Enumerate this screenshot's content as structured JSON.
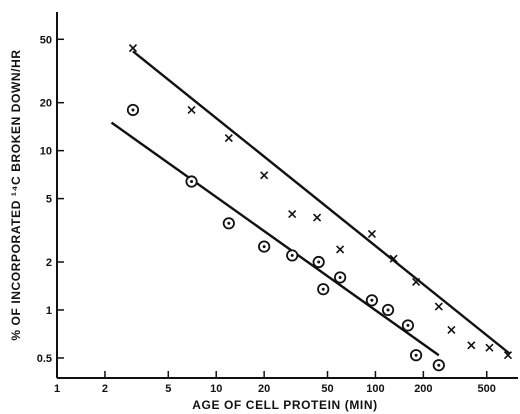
{
  "chart_data": {
    "type": "scatter",
    "title": "",
    "xlabel": "AGE OF CELL PROTEIN (MIN)",
    "ylabel": "% OF INCORPORATED ¹⁴C BROKEN DOWN/HR",
    "x_scale": "log",
    "y_scale": "log",
    "xlim": [
      1,
      700
    ],
    "ylim": [
      0.42,
      70
    ],
    "x_ticks": [
      1,
      2,
      5,
      10,
      20,
      50,
      100,
      200,
      500
    ],
    "y_ticks": [
      0.5,
      1,
      2,
      5,
      10,
      20,
      50
    ],
    "x_tick_labels": [
      "1",
      "2",
      "5",
      "10",
      "20",
      "50",
      "100",
      "200",
      "500"
    ],
    "y_tick_labels": [
      "0.5",
      "1",
      "2",
      "5",
      "10",
      "20",
      "50"
    ],
    "grid": false,
    "series": [
      {
        "marker": "x",
        "points": [
          [
            3,
            44
          ],
          [
            7,
            18
          ],
          [
            12,
            12
          ],
          [
            20,
            7
          ],
          [
            30,
            4
          ],
          [
            43,
            3.8
          ],
          [
            60,
            2.4
          ],
          [
            95,
            3.0
          ],
          [
            130,
            2.1
          ],
          [
            180,
            1.5
          ],
          [
            250,
            1.05
          ],
          [
            300,
            0.75
          ],
          [
            400,
            0.6
          ],
          [
            520,
            0.58
          ],
          [
            680,
            0.52
          ]
        ],
        "fit": [
          [
            3,
            42
          ],
          [
            700,
            0.53
          ]
        ]
      },
      {
        "marker": "circled-dot",
        "points": [
          [
            3,
            18
          ],
          [
            7,
            6.4
          ],
          [
            12,
            3.5
          ],
          [
            20,
            2.5
          ],
          [
            30,
            2.2
          ],
          [
            44,
            2.0
          ],
          [
            47,
            1.35
          ],
          [
            60,
            1.6
          ],
          [
            95,
            1.15
          ],
          [
            120,
            1.0
          ],
          [
            160,
            0.8
          ],
          [
            180,
            0.52
          ],
          [
            250,
            0.45
          ]
        ],
        "fit": [
          [
            2.2,
            15
          ],
          [
            250,
            0.52
          ]
        ]
      }
    ]
  }
}
